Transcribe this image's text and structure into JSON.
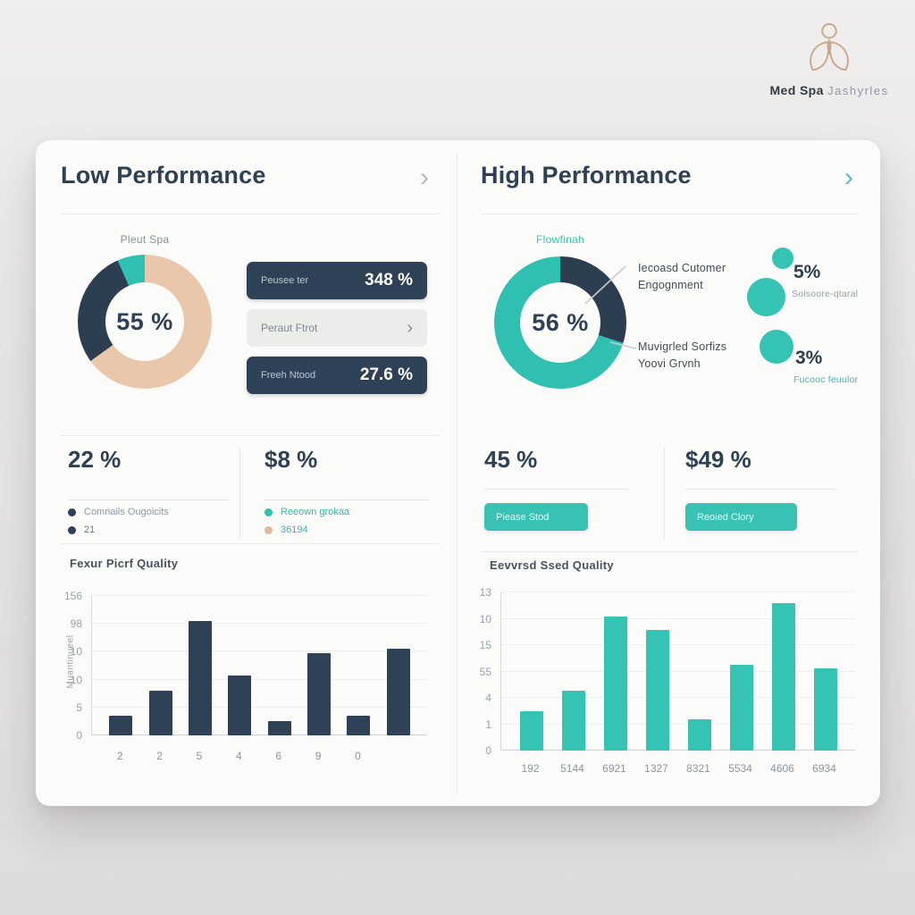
{
  "logo": {
    "icon": "lotus-person-icon",
    "icon_color": "#c9a88a",
    "brand": "Med Spa",
    "suffix": "Jashyrles"
  },
  "left_panel": {
    "title": "Low Performance",
    "chevron": "›",
    "pills": [
      {
        "label": "Peusee ter",
        "value": "348 %"
      },
      {
        "label": "Peraut Ftrot",
        "value": "›"
      },
      {
        "label": "Freeh Ntood",
        "value": "27.6 %"
      }
    ],
    "stats": [
      {
        "value": "22 %",
        "items": [
          {
            "text": "Comnails Ougoicits",
            "dot": "#2e4057",
            "color": "#8d99a3"
          },
          {
            "text": "21",
            "dot": "#2e4057",
            "color": "#6e7a85"
          }
        ]
      },
      {
        "value": "$8 %",
        "items": [
          {
            "text": "Reeown grokaa",
            "dot": "#2fc0b2",
            "color": "#3cb4ab"
          },
          {
            "text": "36194",
            "dot": "#e2bb9e",
            "color": "#3cb4ab"
          }
        ]
      }
    ]
  },
  "right_panel": {
    "title": "High Performance",
    "chevron": "›",
    "annotations": [
      "Iecoasd Cutomer\nEngognment",
      "Muvigrled Sorfizs\nYoovi Grvnh"
    ],
    "bubbles": [
      {
        "value": "5%",
        "caption": "Soisoore-qtaral",
        "caption_color": "#98a1a8"
      },
      {
        "value": "3%",
        "caption": "Fucooc feuulor",
        "caption_color": "#4ab4bd"
      }
    ],
    "stats": [
      {
        "value": "45 %",
        "button": "Piease Stod"
      },
      {
        "value": "$49 %",
        "button": "Reoied Clory"
      }
    ]
  },
  "chart_data": [
    {
      "type": "pie",
      "title": "Pleut Spa",
      "title_color": "#8a9198",
      "center_label": "55 %",
      "slices": [
        {
          "name": "tan-segment",
          "value_pct": 65,
          "color": "#eac7ab"
        },
        {
          "name": "navy-segment",
          "value_pct": 28,
          "color": "#2c3e50"
        },
        {
          "name": "teal-segment",
          "value_pct": 7,
          "color": "#2fc0b2"
        }
      ],
      "segments_deg": [
        {
          "color": "#eac7ab",
          "from": 0,
          "to": 234
        },
        {
          "color": "#2c3e50",
          "from": 234,
          "to": 336
        },
        {
          "color": "#2fc0b2",
          "from": 336,
          "to": 360
        }
      ]
    },
    {
      "type": "bar",
      "title": "Fexur Picrf Quality",
      "ylabel": "Muantinueel",
      "bar_color": "#2e4157",
      "y_ticks": [
        "156",
        "98",
        "10",
        "10",
        "5",
        "0"
      ],
      "categories": [
        "2",
        "2",
        "5",
        "4",
        "6",
        "9",
        "0",
        ""
      ],
      "values_pct_of_max": [
        14,
        32,
        82,
        43,
        10,
        59,
        14,
        62
      ],
      "grid": true,
      "legend": false
    },
    {
      "type": "pie",
      "title": "Flowfinah",
      "title_color": "#35c3b4",
      "center_label": "56 %",
      "slices": [
        {
          "name": "navy-segment",
          "value_pct": 30,
          "color": "#2c3e50"
        },
        {
          "name": "teal-segment",
          "value_pct": 70,
          "color": "#2fc0b2"
        }
      ],
      "segments_deg": [
        {
          "color": "#2c3e50",
          "from": 0,
          "to": 108
        },
        {
          "color": "#2fc0b2",
          "from": 108,
          "to": 360
        }
      ]
    },
    {
      "type": "bar",
      "title": "Eevvrsd Ssed Quality",
      "ylabel": "",
      "bar_color": "#35c3b4",
      "y_ticks": [
        "13",
        "10",
        "15",
        "55",
        "4",
        "1",
        "0"
      ],
      "categories": [
        "192",
        "5144",
        "6921",
        "1327",
        "8321",
        "5534",
        "4606",
        "6934"
      ],
      "values_pct_of_max": [
        25,
        38,
        85,
        76,
        20,
        54,
        93,
        52
      ],
      "grid": true,
      "legend": false
    }
  ]
}
